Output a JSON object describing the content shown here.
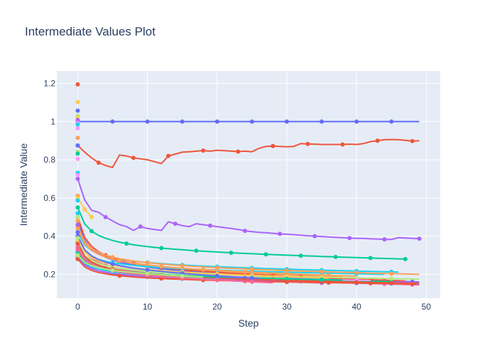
{
  "chart_data": {
    "type": "line",
    "title": "Intermediate Values Plot",
    "xlabel": "Step",
    "ylabel": "Intermediate Value",
    "xlim": [
      -3,
      52
    ],
    "ylim": [
      0.075,
      1.265
    ],
    "x_ticks": [
      0,
      10,
      20,
      30,
      40,
      50
    ],
    "y_ticks": [
      0.2,
      0.4,
      0.6,
      0.8,
      1,
      1.2
    ],
    "x_tick_labels": [
      "0",
      "10",
      "20",
      "30",
      "40",
      "50"
    ],
    "y_tick_labels": [
      "0.2",
      "0.4",
      "0.6",
      "0.8",
      "1",
      "1.2"
    ],
    "grid": true,
    "legend": "none",
    "plot_bg": "#e5ecf6",
    "series": [
      {
        "color": "#636efa",
        "kind": "flat",
        "start": 1.0,
        "end": 1.0,
        "steps": 49,
        "marker_every": 5
      },
      {
        "color": "#ef553b",
        "kind": "custom",
        "x": [
          0,
          1,
          2,
          3,
          4,
          5,
          6,
          7,
          8,
          9,
          10,
          11,
          12,
          13,
          14,
          15,
          16,
          17,
          18,
          19,
          20,
          21,
          22,
          23,
          24,
          25,
          26,
          27,
          28,
          29,
          30,
          31,
          32,
          33,
          34,
          35,
          36,
          37,
          38,
          39,
          40,
          41,
          42,
          43,
          44,
          45,
          46,
          47,
          48,
          49
        ],
        "y": [
          0.875,
          0.84,
          0.81,
          0.785,
          0.77,
          0.76,
          0.825,
          0.82,
          0.81,
          0.805,
          0.8,
          0.79,
          0.78,
          0.82,
          0.83,
          0.84,
          0.842,
          0.845,
          0.848,
          0.845,
          0.85,
          0.848,
          0.845,
          0.843,
          0.845,
          0.842,
          0.86,
          0.87,
          0.872,
          0.87,
          0.868,
          0.87,
          0.885,
          0.883,
          0.882,
          0.88,
          0.88,
          0.88,
          0.88,
          0.882,
          0.88,
          0.885,
          0.895,
          0.9,
          0.905,
          0.906,
          0.905,
          0.902,
          0.898,
          0.9
        ],
        "markers": [
          3,
          8,
          13,
          18,
          23,
          28,
          33,
          38,
          43,
          48
        ]
      },
      {
        "color": "#ab63fa",
        "kind": "custom",
        "x": [
          0,
          1,
          2,
          3,
          4,
          5,
          6,
          7,
          8,
          9,
          10,
          11,
          12,
          13,
          14,
          15,
          16,
          17,
          18,
          19,
          20,
          21,
          22,
          23,
          24,
          25,
          26,
          27,
          28,
          29,
          30,
          31,
          32,
          33,
          34,
          35,
          36,
          37,
          38,
          39,
          40,
          41,
          42,
          43,
          44,
          45,
          46,
          47,
          48,
          49
        ],
        "y": [
          0.7,
          0.59,
          0.535,
          0.525,
          0.5,
          0.48,
          0.46,
          0.45,
          0.43,
          0.45,
          0.44,
          0.435,
          0.43,
          0.475,
          0.465,
          0.455,
          0.45,
          0.465,
          0.46,
          0.455,
          0.45,
          0.445,
          0.44,
          0.435,
          0.428,
          0.424,
          0.42,
          0.418,
          0.415,
          0.412,
          0.41,
          0.408,
          0.405,
          0.402,
          0.4,
          0.398,
          0.396,
          0.394,
          0.392,
          0.39,
          0.388,
          0.388,
          0.386,
          0.385,
          0.383,
          0.383,
          0.392,
          0.39,
          0.388,
          0.387
        ],
        "markers": [
          4,
          9,
          14,
          19,
          24,
          29,
          34,
          39,
          44,
          49
        ]
      },
      {
        "color": "#00cc96",
        "kind": "decay",
        "start": 0.55,
        "end": 0.28,
        "steps": 47,
        "marker_every": 5,
        "marker_offset": 2
      },
      {
        "color": "#19d3f3",
        "kind": "decay",
        "start": 0.42,
        "end": 0.212,
        "steps": 46,
        "marker_every": 5
      },
      {
        "color": "#ffa15a",
        "kind": "decay",
        "start": 0.46,
        "end": 0.185,
        "steps": 38,
        "marker_every": 5
      },
      {
        "color": "#ff6692",
        "kind": "decay",
        "start": 0.4,
        "end": 0.145,
        "steps": 49,
        "marker_every": 4
      },
      {
        "color": "#b6e880",
        "kind": "decay",
        "start": 0.36,
        "end": 0.17,
        "steps": 40,
        "marker_every": 5
      },
      {
        "color": "#ff97ff",
        "kind": "decay",
        "start": 0.39,
        "end": 0.175,
        "steps": 30,
        "marker_every": 5
      },
      {
        "color": "#fecb52",
        "kind": "decay",
        "start": 0.6,
        "end": 0.5,
        "steps": 2,
        "marker_every": 1
      },
      {
        "color": "#636efa",
        "kind": "decay",
        "start": 0.48,
        "end": 0.16,
        "steps": 49,
        "marker_every": 6
      },
      {
        "color": "#ef553b",
        "kind": "decay",
        "start": 0.5,
        "end": 0.165,
        "steps": 47,
        "marker_every": 4
      },
      {
        "color": "#ab63fa",
        "kind": "decay",
        "start": 0.32,
        "end": 0.158,
        "steps": 49,
        "marker_every": 5
      },
      {
        "color": "#00cc96",
        "kind": "decay",
        "start": 0.34,
        "end": 0.162,
        "steps": 45,
        "marker_every": 5
      },
      {
        "color": "#19d3f3",
        "kind": "decay",
        "start": 0.37,
        "end": 0.2,
        "steps": 44,
        "marker_every": 5
      },
      {
        "color": "#ffa15a",
        "kind": "decay",
        "start": 0.44,
        "end": 0.19,
        "steps": 40,
        "marker_every": 6
      },
      {
        "color": "#ff6692",
        "kind": "decay",
        "start": 0.33,
        "end": 0.155,
        "steps": 35,
        "marker_every": 5
      },
      {
        "color": "#b6e880",
        "kind": "decay",
        "start": 0.35,
        "end": 0.175,
        "steps": 49,
        "marker_every": 5
      },
      {
        "color": "#ff97ff",
        "kind": "decay",
        "start": 0.31,
        "end": 0.168,
        "steps": 42,
        "marker_every": 5
      },
      {
        "color": "#fecb52",
        "kind": "decay",
        "start": 0.38,
        "end": 0.18,
        "steps": 36,
        "marker_every": 5
      },
      {
        "color": "#636efa",
        "kind": "decay",
        "start": 0.3,
        "end": 0.15,
        "steps": 49,
        "marker_every": 5
      },
      {
        "color": "#ef553b",
        "kind": "decay",
        "start": 0.36,
        "end": 0.152,
        "steps": 49,
        "marker_every": 5
      },
      {
        "color": "#ab63fa",
        "kind": "decay",
        "start": 0.29,
        "end": 0.16,
        "steps": 30,
        "marker_every": 5
      },
      {
        "color": "#00cc96",
        "kind": "decay",
        "start": 0.31,
        "end": 0.17,
        "steps": 38,
        "marker_every": 5
      },
      {
        "color": "#ffa15a",
        "kind": "decay",
        "start": 0.45,
        "end": 0.2,
        "steps": 49,
        "marker_every": 5
      },
      {
        "color": "#636efa",
        "kind": "decay",
        "start": 0.4,
        "end": 0.178,
        "steps": 26,
        "marker_every": 5
      },
      {
        "color": "#ef553b",
        "kind": "decay",
        "start": 0.28,
        "end": 0.15,
        "steps": 48,
        "marker_every": 6
      },
      {
        "color": "#19d3f3",
        "kind": "decay",
        "start": 0.3,
        "end": 0.172,
        "steps": 20,
        "marker_every": 5
      },
      {
        "color": "#ff6692",
        "kind": "decay",
        "start": 0.34,
        "end": 0.156,
        "steps": 28,
        "marker_every": 5
      },
      {
        "color": "#b6e880",
        "kind": "decay",
        "start": 0.3,
        "end": 0.185,
        "steps": 18,
        "marker_every": 5
      }
    ],
    "single_points": [
      {
        "color": "#ef553b",
        "y": 1.195
      },
      {
        "color": "#fecb52",
        "y": 1.103
      },
      {
        "color": "#636efa",
        "y": 1.057
      },
      {
        "color": "#b6e880",
        "y": 1.03
      },
      {
        "color": "#fecb52",
        "y": 1.018
      },
      {
        "color": "#ab63fa",
        "y": 1.008
      },
      {
        "color": "#ff97ff",
        "y": 0.993
      },
      {
        "color": "#19d3f3",
        "y": 0.985
      },
      {
        "color": "#ff97ff",
        "y": 0.965
      },
      {
        "color": "#ffa15a",
        "y": 0.915
      },
      {
        "color": "#636efa",
        "y": 0.875
      },
      {
        "color": "#b6e880",
        "y": 0.842
      },
      {
        "color": "#00cc96",
        "y": 0.832
      },
      {
        "color": "#ff97ff",
        "y": 0.805
      },
      {
        "color": "#19d3f3",
        "y": 0.732
      },
      {
        "color": "#ff97ff",
        "y": 0.72
      },
      {
        "color": "#ffa15a",
        "y": 0.612
      },
      {
        "color": "#fecb52",
        "y": 0.6
      },
      {
        "color": "#19d3f3",
        "y": 0.587
      },
      {
        "color": "#19d3f3",
        "y": 0.52
      },
      {
        "color": "#b6e880",
        "y": 0.5
      },
      {
        "color": "#ffa15a",
        "y": 0.48
      },
      {
        "color": "#ab63fa",
        "y": 0.46
      },
      {
        "color": "#636efa",
        "y": 0.42
      },
      {
        "color": "#b6e880",
        "y": 0.39
      }
    ]
  }
}
